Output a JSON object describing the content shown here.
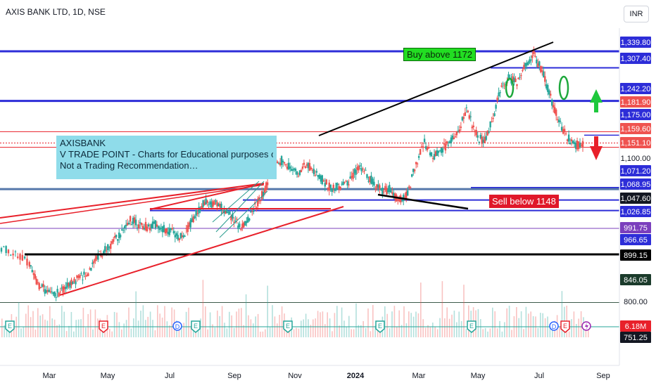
{
  "header": {
    "title": "AXIS BANK LTD, 1D, NSE",
    "currency": "INR"
  },
  "annotations": {
    "note_lines": [
      "AXISBANK",
      "V TRADE POINT - Charts for Educational purposes only.",
      "Not a Trading Recommendation…"
    ],
    "buy_label": "Buy above 1172",
    "sell_label": "Sell below 1148"
  },
  "colors": {
    "blue_line": "#2d2dd8",
    "red_line": "#e8202a",
    "black_line": "#000000",
    "purple_line": "#7b3fbd",
    "up_candle": "#26a69a",
    "down_candle": "#ef5350",
    "note_bg": "#8fdcea"
  },
  "chart_data": {
    "type": "candlestick",
    "symbol": "AXISBANK",
    "interval": "1D",
    "exchange": "NSE",
    "y_axis": {
      "ticks": [
        1100.0,
        800.0
      ],
      "range": [
        757,
        1355
      ]
    },
    "x_axis": {
      "ticks": [
        "Mar",
        "May",
        "Jul",
        "Sep",
        "Nov",
        "2024",
        "Mar",
        "May",
        "Jul",
        "Sep"
      ]
    },
    "price_levels": [
      {
        "value": 1339.8,
        "label": "1,339.80",
        "color": "#2d2dd8"
      },
      {
        "value": 1307.4,
        "label": "1,307.40",
        "color": "#2d2dd8"
      },
      {
        "value": 1242.2,
        "label": "1,242.20",
        "color": "#2d2dd8"
      },
      {
        "value": 1181.9,
        "label": "1,181.90",
        "color": "#e8202a"
      },
      {
        "value": 1175.0,
        "label": "1,175.00",
        "color": "#2d2dd8"
      },
      {
        "value": 1159.6,
        "label": "1,159.60",
        "color": "#e8202a"
      },
      {
        "value": 1151.1,
        "label": "1,151.10",
        "color": "#e8202a"
      },
      {
        "value": 1071.2,
        "label": "1,071.20",
        "color": "#2d2dd8"
      },
      {
        "value": 1068.95,
        "label": "1,068.95",
        "color": "#2d2dd8"
      },
      {
        "value": 1047.6,
        "label": "1,047.60",
        "color": "#131722"
      },
      {
        "value": 1026.85,
        "label": "1,026.85",
        "color": "#2d2dd8"
      },
      {
        "value": 991.75,
        "label": "991.75",
        "color": "#7b3fbd"
      },
      {
        "value": 966.65,
        "label": "966.65",
        "color": "#2d2dd8"
      },
      {
        "value": 899.15,
        "label": "899.15",
        "color": "#000000"
      },
      {
        "value": 846.05,
        "label": "846.05",
        "color": "#1b3b2b"
      },
      {
        "value": 6.18,
        "label": "6.18M",
        "color": "#e8202a"
      },
      {
        "value": 751.25,
        "label": "751.25",
        "color": "#131722"
      }
    ],
    "price_path": [
      [
        0.0,
        955
      ],
      [
        0.5,
        945
      ],
      [
        1.0,
        920
      ],
      [
        1.3,
        880
      ],
      [
        1.6,
        870
      ],
      [
        1.9,
        862
      ],
      [
        2.2,
        870
      ],
      [
        2.5,
        885
      ],
      [
        2.8,
        895
      ],
      [
        3.1,
        905
      ],
      [
        3.4,
        935
      ],
      [
        3.7,
        950
      ],
      [
        4.0,
        965
      ],
      [
        4.3,
        985
      ],
      [
        4.6,
        1010
      ],
      [
        4.9,
        1000
      ],
      [
        5.2,
        995
      ],
      [
        5.5,
        1000
      ],
      [
        5.8,
        990
      ],
      [
        6.1,
        985
      ],
      [
        6.4,
        975
      ],
      [
        6.7,
        995
      ],
      [
        7.0,
        1025
      ],
      [
        7.3,
        1045
      ],
      [
        7.6,
        1040
      ],
      [
        7.9,
        1030
      ],
      [
        8.2,
        1015
      ],
      [
        8.5,
        995
      ],
      [
        8.8,
        1010
      ],
      [
        9.1,
        1040
      ],
      [
        9.4,
        1065
      ],
      [
        9.7,
        1120
      ],
      [
        10.0,
        1125
      ],
      [
        10.3,
        1110
      ],
      [
        10.6,
        1100
      ],
      [
        10.9,
        1120
      ],
      [
        11.2,
        1100
      ],
      [
        11.5,
        1085
      ],
      [
        11.8,
        1070
      ],
      [
        12.1,
        1075
      ],
      [
        12.4,
        1080
      ],
      [
        12.7,
        1110
      ],
      [
        13.0,
        1100
      ],
      [
        13.3,
        1080
      ],
      [
        13.6,
        1065
      ],
      [
        13.9,
        1070
      ],
      [
        14.2,
        1045
      ],
      [
        14.5,
        1060
      ],
      [
        14.8,
        1120
      ],
      [
        15.1,
        1160
      ],
      [
        15.4,
        1130
      ],
      [
        15.7,
        1145
      ],
      [
        16.0,
        1160
      ],
      [
        16.3,
        1180
      ],
      [
        16.6,
        1230
      ],
      [
        16.9,
        1180
      ],
      [
        17.2,
        1160
      ],
      [
        17.5,
        1200
      ],
      [
        17.8,
        1260
      ],
      [
        18.1,
        1290
      ],
      [
        18.4,
        1275
      ],
      [
        18.7,
        1310
      ],
      [
        19.0,
        1335
      ],
      [
        19.3,
        1300
      ],
      [
        19.6,
        1250
      ],
      [
        19.9,
        1200
      ],
      [
        20.2,
        1170
      ],
      [
        20.5,
        1155
      ],
      [
        20.8,
        1160
      ]
    ],
    "volume_signal": "6.18M",
    "time_markers": {
      "E": [
        14,
        147,
        278,
        409,
        540,
        670,
        803
      ],
      "D": [
        252,
        787
      ],
      "lightning": [
        833
      ]
    }
  }
}
